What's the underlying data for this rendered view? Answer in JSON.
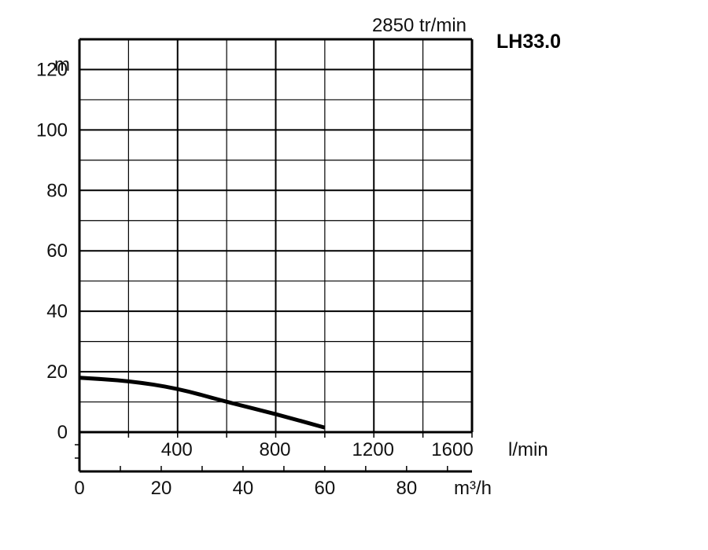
{
  "chart_data": {
    "type": "line",
    "title": "LH33.0",
    "subtitle": "2850 tr/min",
    "ylabel": "m",
    "xlabel_flow_lmin": "l/min",
    "xlabel_flow_m3h": "m³/h",
    "ylim": [
      0,
      130
    ],
    "x_lmin_lim": [
      0,
      1600
    ],
    "x_m3h_lim": [
      0,
      96
    ],
    "y_ticks": [
      0,
      20,
      40,
      60,
      80,
      100,
      120
    ],
    "y_tick_labels": [
      "0",
      "20",
      "40",
      "60",
      "80",
      "100",
      "120"
    ],
    "x_lmin_ticks": [
      400,
      800,
      1200,
      1600
    ],
    "x_lmin_tick_labels": [
      "400",
      "800",
      "1200",
      "1600"
    ],
    "x_m3h_ticks": [
      0,
      20,
      40,
      60,
      80
    ],
    "x_m3h_tick_labels": [
      "0",
      "20",
      "40",
      "60",
      "80"
    ],
    "grid": true,
    "grid_x_step_lmin": 200,
    "grid_y_step": 10,
    "series": [
      {
        "x_lmin": [
          0,
          200,
          400,
          600,
          800,
          1000
        ],
        "y": [
          18,
          17,
          14.5,
          10,
          6,
          1.5
        ]
      }
    ],
    "colors": {
      "curve": "#000000",
      "grid": "#000000"
    }
  }
}
